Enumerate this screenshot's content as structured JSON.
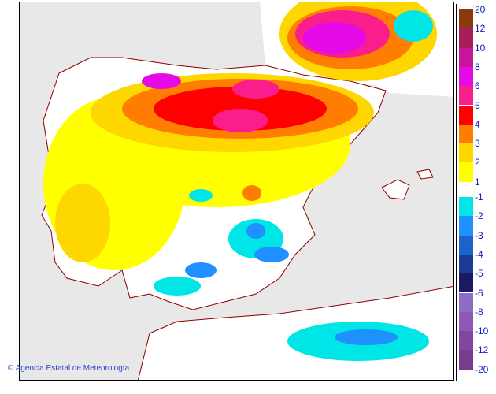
{
  "credit": "Agencia Estatal de Meteorología",
  "credit_icon": "copyright-icon",
  "legend": {
    "positive": [
      {
        "label": "20",
        "color": "#8b3a10"
      },
      {
        "label": "12",
        "color": "#a81e5a"
      },
      {
        "label": "10",
        "color": "#c8169a"
      },
      {
        "label": "8",
        "color": "#e60ae6"
      },
      {
        "label": "6",
        "color": "#fa1e8c"
      },
      {
        "label": "5",
        "color": "#ff0000"
      },
      {
        "label": "4",
        "color": "#ff7d00"
      },
      {
        "label": "3",
        "color": "#ffd700"
      },
      {
        "label": "2",
        "color": "#ffff00"
      }
    ],
    "positive_last": "1",
    "negative": [
      {
        "label": "-1",
        "color": "#00e6e6"
      },
      {
        "label": "-2",
        "color": "#1e90ff"
      },
      {
        "label": "-3",
        "color": "#1e64c8"
      },
      {
        "label": "-4",
        "color": "#1a3c96"
      },
      {
        "label": "-5",
        "color": "#191964"
      },
      {
        "label": "-6",
        "color": "#8c6ec8"
      },
      {
        "label": "-8",
        "color": "#8c5ab4"
      },
      {
        "label": "-10",
        "color": "#82469e"
      },
      {
        "label": "-12",
        "color": "#783c8c"
      }
    ],
    "negative_last": "-20"
  },
  "colors": {
    "sea": "#e8e8e8",
    "land": "#ffffff",
    "border": "#8b0000"
  }
}
